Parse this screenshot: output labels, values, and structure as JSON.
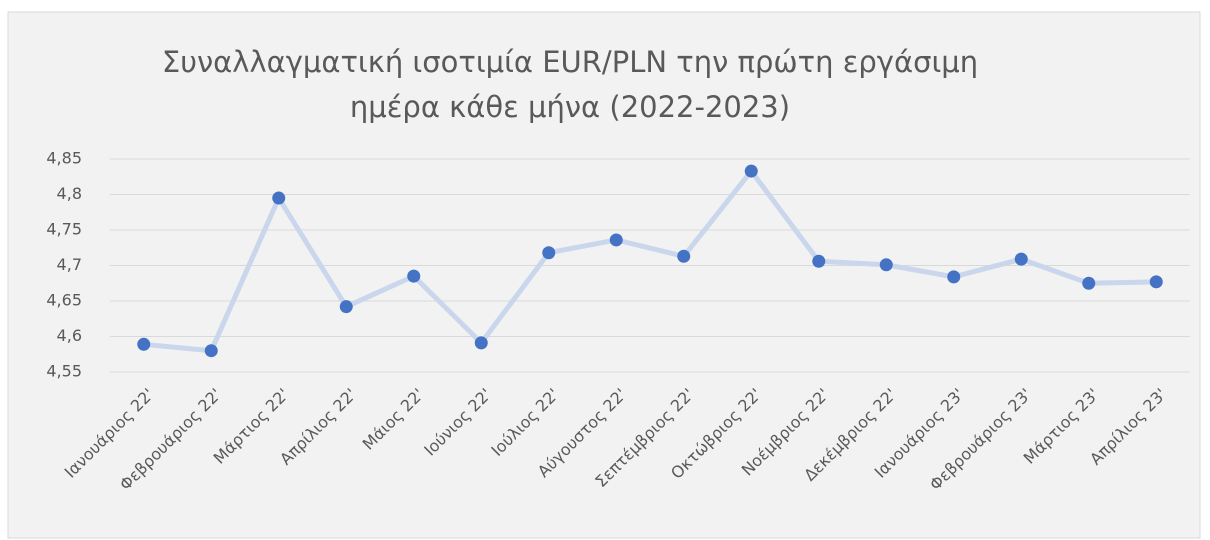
{
  "chart_data": {
    "type": "line",
    "title": "Συναλλαγματική ισοτιμία EUR/PLN την πρώτη εργάσιμη ημέρα κάθε μήνα (2022-2023)",
    "categories": [
      "Ιανουάριος 22'",
      "Φεβρουάριος 22'",
      "Μάρτιος 22'",
      "Απρίλιος 22'",
      "Μάιος 22'",
      "Ιούνιος 22'",
      "Ιούλιος 22'",
      "Αύγουστος 22'",
      "Σεπτέμβριος 22'",
      "Οκτώβριος 22'",
      "Νοέμβριος 22'",
      "Δεκέμβριος 22'",
      "Ιανουάριος 23'",
      "Φεβρουάριος 23'",
      "Μάρτιος 23'",
      "Απρίλιος 23'"
    ],
    "values": [
      4.589,
      4.58,
      4.795,
      4.642,
      4.685,
      4.591,
      4.718,
      4.736,
      4.713,
      4.833,
      4.706,
      4.701,
      4.684,
      4.709,
      4.675,
      4.677
    ],
    "line_color": "#c9d6ec",
    "marker_color": "#4472c4",
    "ylim": [
      4.55,
      4.85
    ],
    "yticks": [
      {
        "value": 4.55,
        "label": "4,55"
      },
      {
        "value": 4.6,
        "label": "4,6"
      },
      {
        "value": 4.65,
        "label": "4,65"
      },
      {
        "value": 4.7,
        "label": "4,7"
      },
      {
        "value": 4.75,
        "label": "4,75"
      },
      {
        "value": 4.8,
        "label": "4,8"
      },
      {
        "value": 4.85,
        "label": "4,85"
      }
    ],
    "grid": true
  }
}
